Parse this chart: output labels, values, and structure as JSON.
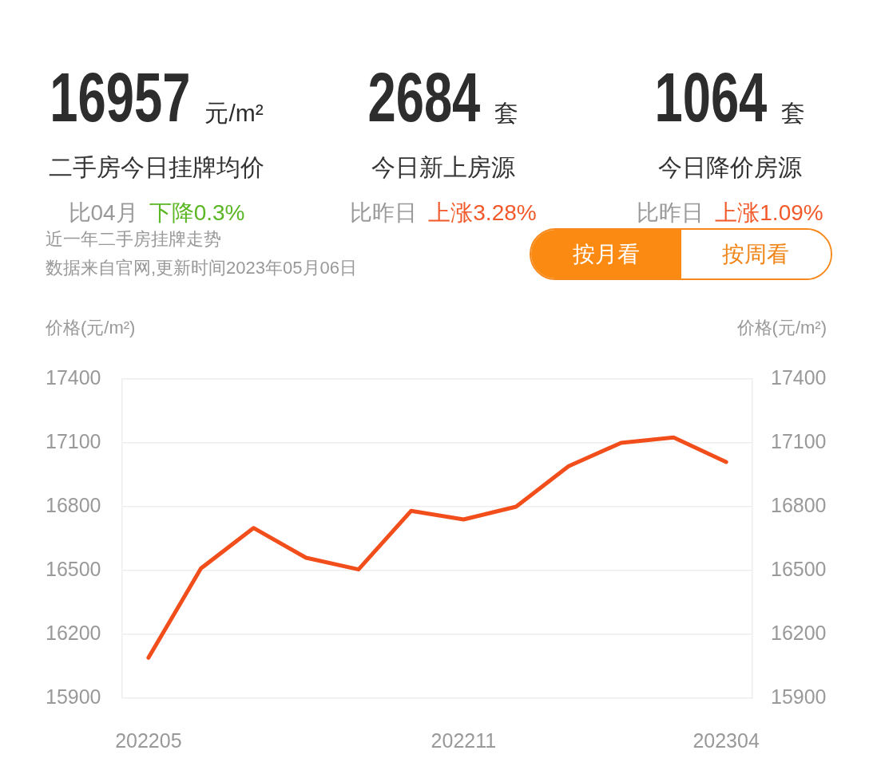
{
  "chart_data": [
    {
      "type": "other",
      "annotations": [
        "16957",
        "元/m²",
        "二手房今日挂牌均价",
        "比04月",
        "下降0.3%",
        "2684",
        "套",
        "今日新上房源",
        "比昨日",
        "上涨3.28%",
        "1064",
        "套",
        "今日降价房源",
        "比昨日",
        "上涨1.09%"
      ],
      "colors": [
        "#5bb624",
        "#f2592a",
        "#f2592a"
      ]
    },
    {
      "type": "line",
      "title": "近一年二手房挂牌走势",
      "annotations": [
        "数据来自官网,更新时间2023年05月06日",
        "按月看",
        "按周看"
      ],
      "ylabel": "价格(元/m²)",
      "y2label": "价格(元/m²)",
      "categories": [
        "202205",
        null,
        null,
        null,
        null,
        null,
        "202211",
        null,
        null,
        null,
        null,
        "202304"
      ],
      "series": [
        {
          "color": "#f24e1b",
          "values": [
            16090,
            16510,
            16700,
            16560,
            16505,
            16780,
            16740,
            16800,
            16990,
            17100,
            17125,
            17010
          ]
        }
      ],
      "ylim": [
        15900,
        17400
      ],
      "yticks": [
        15900,
        16200,
        16500,
        16800,
        17100,
        17400
      ],
      "y2lim": [
        15900,
        17400
      ],
      "y2ticks": [
        15900,
        16200,
        16500,
        16800,
        17100,
        17400
      ],
      "grid": "y",
      "marker": "none"
    }
  ]
}
